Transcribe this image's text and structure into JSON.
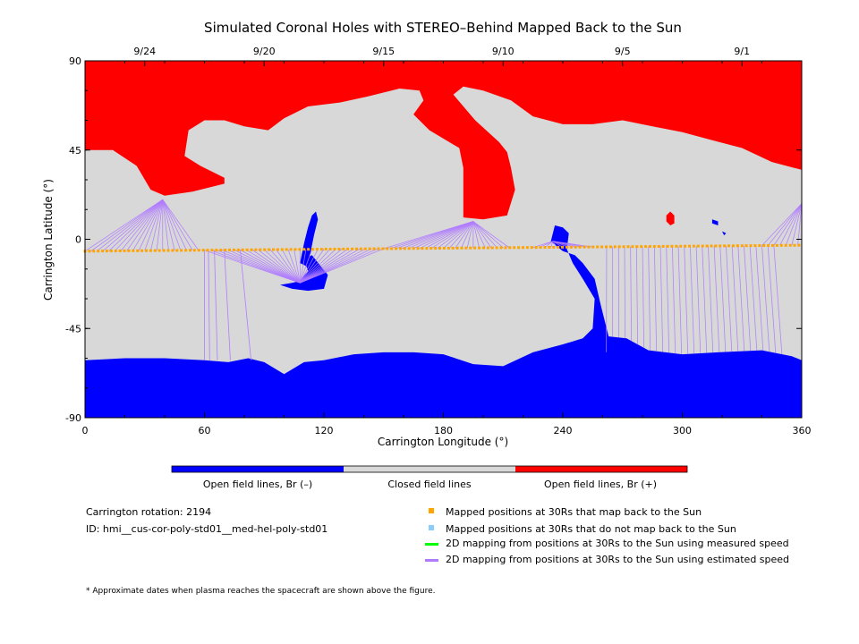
{
  "chart_data": {
    "type": "heatmap",
    "title": "Simulated Coronal Holes with STEREO–Behind Mapped Back to the Sun",
    "xlabel": "Carrington Longitude (°)",
    "ylabel": "Carrington Latitude (°)",
    "xlim": [
      0,
      360
    ],
    "ylim": [
      -90,
      90
    ],
    "x_ticks": [
      0,
      60,
      120,
      180,
      240,
      300,
      360
    ],
    "x_tick_labels": [
      "0",
      "60",
      "120",
      "180",
      "240",
      "300",
      "360"
    ],
    "y_ticks": [
      90,
      45,
      0,
      -45,
      -90
    ],
    "y_tick_labels": [
      "90",
      "45",
      "0",
      "-45",
      "-90"
    ],
    "top_axis_dates": [
      {
        "label": "9/24",
        "longitude": 30
      },
      {
        "label": "9/20",
        "longitude": 90
      },
      {
        "label": "9/15",
        "longitude": 150
      },
      {
        "label": "9/10",
        "longitude": 210
      },
      {
        "label": "9/5",
        "longitude": 270
      },
      {
        "label": "9/1",
        "longitude": 330
      }
    ],
    "colors": {
      "open_negative": "#0000ff",
      "closed": "#d8d8d8",
      "open_positive": "#ff0000",
      "mapped_back": "#ffa500",
      "not_mapped": "#87cefa",
      "measured_speed": "#00ff00",
      "estimated_speed": "#b07cff"
    },
    "colorbar_labels": [
      "Open field lines, Br (–)",
      "Closed field lines",
      "Open field lines, Br (+)"
    ],
    "positive_region": [
      [
        0,
        90
      ],
      [
        360,
        90
      ],
      [
        360,
        35
      ],
      [
        345,
        39
      ],
      [
        330,
        46
      ],
      [
        315,
        50
      ],
      [
        300,
        54
      ],
      [
        285,
        57
      ],
      [
        270,
        60
      ],
      [
        255,
        58
      ],
      [
        240,
        58
      ],
      [
        225,
        62
      ],
      [
        214,
        70
      ],
      [
        200,
        75
      ],
      [
        190,
        77
      ],
      [
        185,
        73
      ],
      [
        196,
        60
      ],
      [
        208,
        49
      ],
      [
        212,
        44
      ],
      [
        214,
        36
      ],
      [
        216,
        25
      ],
      [
        212,
        12
      ],
      [
        200,
        10
      ],
      [
        190,
        11
      ],
      [
        190,
        36
      ],
      [
        188,
        46
      ],
      [
        173,
        55
      ],
      [
        165,
        63
      ],
      [
        170,
        70
      ],
      [
        168,
        75
      ],
      [
        158,
        76
      ],
      [
        142,
        72
      ],
      [
        128,
        69
      ],
      [
        112,
        67
      ],
      [
        100,
        61
      ],
      [
        92,
        55
      ],
      [
        80,
        57
      ],
      [
        70,
        60
      ],
      [
        60,
        60
      ],
      [
        52,
        55
      ],
      [
        50,
        42
      ],
      [
        58,
        37
      ],
      [
        70,
        31
      ],
      [
        70,
        28
      ],
      [
        54,
        24
      ],
      [
        40,
        22
      ],
      [
        33,
        25
      ],
      [
        26,
        37
      ],
      [
        14,
        45
      ],
      [
        0,
        45
      ]
    ],
    "negative_region": [
      [
        0,
        -61
      ],
      [
        20,
        -60
      ],
      [
        40,
        -60
      ],
      [
        60,
        -61
      ],
      [
        72,
        -62
      ],
      [
        82,
        -60
      ],
      [
        90,
        -62
      ],
      [
        100,
        -68
      ],
      [
        110,
        -62
      ],
      [
        120,
        -61
      ],
      [
        135,
        -58
      ],
      [
        150,
        -57
      ],
      [
        165,
        -57
      ],
      [
        180,
        -58
      ],
      [
        195,
        -63
      ],
      [
        210,
        -64
      ],
      [
        225,
        -57
      ],
      [
        240,
        -53
      ],
      [
        250,
        -50
      ],
      [
        255,
        -45
      ],
      [
        256,
        -30
      ],
      [
        250,
        -20
      ],
      [
        245,
        -12
      ],
      [
        242,
        -5
      ],
      [
        243,
        3
      ],
      [
        240,
        6
      ],
      [
        236,
        7
      ],
      [
        234,
        -1
      ],
      [
        240,
        -6
      ],
      [
        246,
        -8
      ],
      [
        250,
        -12
      ],
      [
        256,
        -20
      ],
      [
        259,
        -33
      ],
      [
        263,
        -49
      ],
      [
        272,
        -50
      ],
      [
        283,
        -56
      ],
      [
        300,
        -58
      ],
      [
        318,
        -57
      ],
      [
        340,
        -56
      ],
      [
        355,
        -59
      ],
      [
        360,
        -61
      ],
      [
        360,
        -90
      ],
      [
        0,
        -90
      ]
    ],
    "small_regions": {
      "negative_central_tongue": [
        [
          98,
          -23
        ],
        [
          104,
          -22
        ],
        [
          108,
          -21
        ],
        [
          112,
          -16
        ],
        [
          110,
          -10
        ],
        [
          114,
          -8
        ],
        [
          122,
          -18
        ],
        [
          120,
          -25
        ],
        [
          112,
          -26
        ],
        [
          104,
          -25
        ]
      ],
      "negative_central_stalk": [
        [
          108,
          -12
        ],
        [
          110,
          -2
        ],
        [
          112,
          6
        ],
        [
          114,
          12
        ],
        [
          116,
          14
        ],
        [
          117,
          10
        ],
        [
          115,
          2
        ],
        [
          113,
          -8
        ],
        [
          112,
          -14
        ]
      ],
      "positive_spot": [
        [
          292,
          12
        ],
        [
          294,
          14
        ],
        [
          296,
          12
        ],
        [
          296,
          8
        ],
        [
          294,
          7
        ],
        [
          292,
          9
        ]
      ],
      "negative_spot_1": [
        [
          315,
          10
        ],
        [
          318,
          9
        ],
        [
          318,
          7
        ],
        [
          315,
          8
        ]
      ],
      "negative_spot_2": [
        [
          320,
          4
        ],
        [
          322,
          3
        ],
        [
          321,
          2
        ]
      ]
    },
    "mapped_line": {
      "lon_start": 0,
      "lat_start": -6,
      "lon_end": 360,
      "lat_end": -3
    },
    "mapping_fans": [
      {
        "target": [
          39,
          20
        ],
        "x_from": 0,
        "x_to": 58
      },
      {
        "target": [
          108,
          -22
        ],
        "x_from": 60,
        "x_to": 150
      },
      {
        "target": [
          195,
          9
        ],
        "x_from": 150,
        "x_to": 215
      },
      {
        "target": [
          235,
          -1
        ],
        "x_from": 225,
        "x_to": 255
      },
      {
        "target": "south",
        "x_from": 262,
        "x_to": 348
      },
      {
        "target": [
          360,
          18
        ],
        "x_from": 340,
        "x_to": 360
      }
    ],
    "colorbar": {
      "segments": [
        {
          "name": "Open field lines, Br (–)",
          "color": "#0000ff"
        },
        {
          "name": "Closed field lines",
          "color": "#d8d8d8"
        },
        {
          "name": "Open field lines, Br (+)",
          "color": "#ff0000"
        }
      ]
    }
  },
  "info": {
    "rotation": "Carrington rotation: 2194",
    "id": "ID: hmi__cus-cor-poly-std01__med-hel-poly-std01"
  },
  "legend": [
    {
      "label": "Mapped positions at 30Rs that map back to the Sun",
      "color": "#ffa500",
      "kind": "square"
    },
    {
      "label": "Mapped positions at 30Rs that do not map back to the Sun",
      "color": "#87cefa",
      "kind": "square"
    },
    {
      "label": "2D mapping from positions at 30Rs to the Sun using measured speed",
      "color": "#00ff00",
      "kind": "line"
    },
    {
      "label": "2D mapping from positions at 30Rs to the Sun using estimated speed",
      "color": "#b07cff",
      "kind": "line"
    }
  ],
  "footnote": "* Approximate dates when plasma reaches the spacecraft are shown above the figure."
}
